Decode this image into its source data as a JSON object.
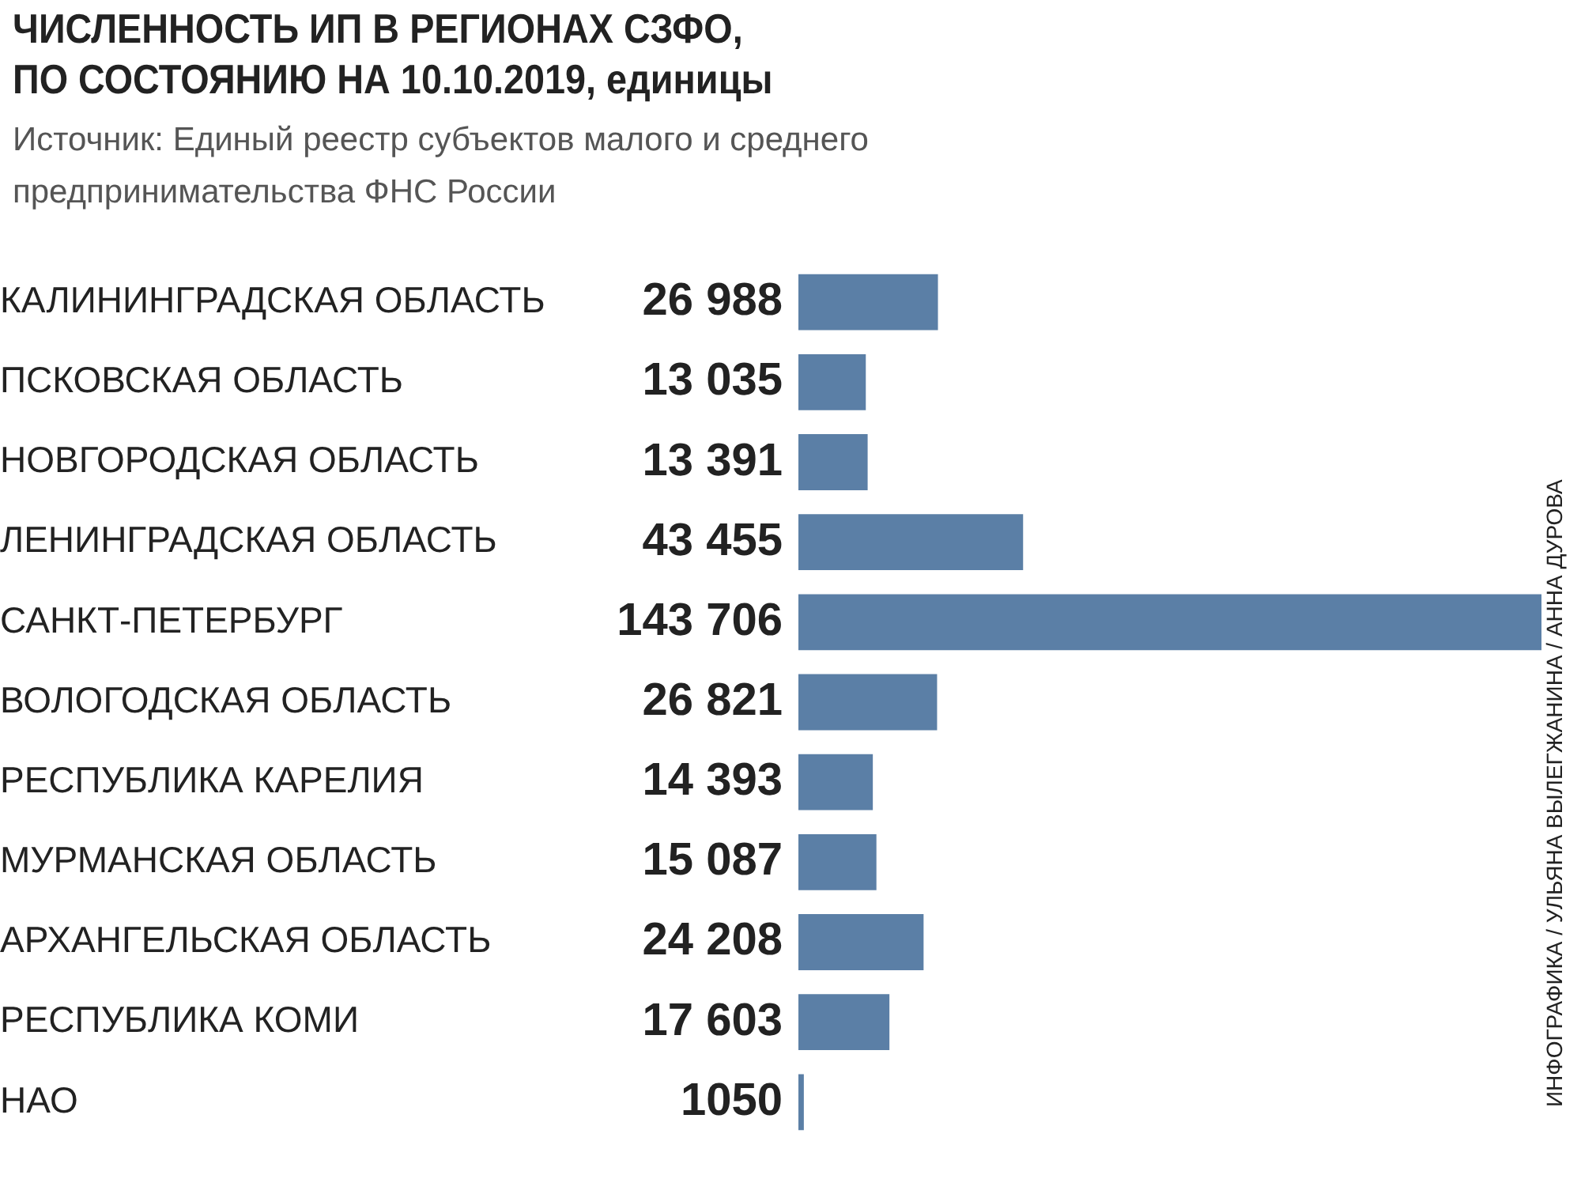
{
  "chart_data": {
    "type": "bar",
    "orientation": "horizontal",
    "title": "ЧИСЛЕННОСТЬ ИП В РЕГИОНАХ СЗФО,\nПО СОСТОЯНИЮ НА 10.10.2019, единицы",
    "subtitle": "Источник: Единый реестр субъектов малого и среднего\nпредпринимательства ФНС России",
    "categories": [
      "КАЛИНИНГРАДСКАЯ ОБЛАСТЬ",
      "ПСКОВСКАЯ ОБЛАСТЬ",
      "НОВГОРОДСКАЯ ОБЛАСТЬ",
      "ЛЕНИНГРАДСКАЯ ОБЛАСТЬ",
      "САНКТ-ПЕТЕРБУРГ",
      "ВОЛОГОДСКАЯ ОБЛАСТЬ",
      "РЕСПУБЛИКА КАРЕЛИЯ",
      "МУРМАНСКАЯ ОБЛАСТЬ",
      "АРХАНГЕЛЬСКАЯ ОБЛАСТЬ",
      "РЕСПУБЛИКА КОМИ",
      "НАО"
    ],
    "values": [
      26988,
      13035,
      13391,
      43455,
      143706,
      26821,
      14393,
      15087,
      24208,
      17603,
      1050
    ],
    "value_labels": [
      "26 988",
      "13 035",
      "13 391",
      "43 455",
      "143 706",
      "26 821",
      "14 393",
      "15 087",
      "24 208",
      "17 603",
      "1050"
    ],
    "color": "#5b7fa6",
    "xlim": [
      0,
      143706
    ],
    "tick_labels": "y",
    "annotations": [
      "ИНФОГРАФИКА / УЛЬЯНА ВЫЛЕГЖАНИНА / АННА ДУРОВА"
    ]
  }
}
